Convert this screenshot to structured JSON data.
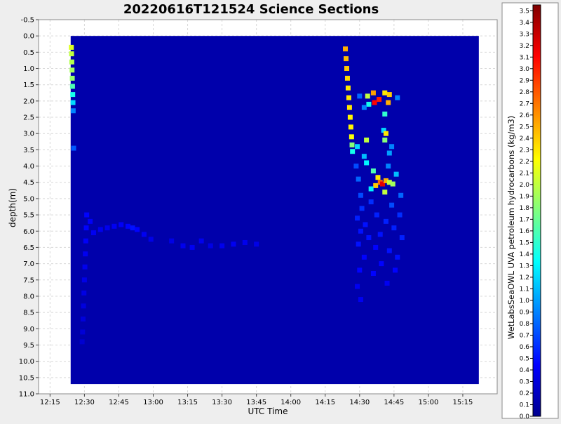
{
  "chart_data": {
    "type": "heatmap",
    "title": "20220616T121524 Science Sections",
    "xlabel": "UTC Time",
    "ylabel": "depth(m)",
    "colorbar_label": "WetLabsSeaOWL UVA petroleum hydrocarbons (kg/m3)",
    "x_ticks": [
      "12:15",
      "12:30",
      "12:45",
      "13:00",
      "13:15",
      "13:30",
      "13:45",
      "14:00",
      "14:15",
      "14:30",
      "14:45",
      "15:00",
      "15:15"
    ],
    "x_tick_minutes": [
      735,
      750,
      765,
      780,
      795,
      810,
      825,
      840,
      855,
      870,
      885,
      900,
      915
    ],
    "xlim_minutes": [
      730,
      930
    ],
    "y_ticks": [
      "-0.5",
      "0.0",
      "0.5",
      "1.0",
      "1.5",
      "2.0",
      "2.5",
      "3.0",
      "3.5",
      "4.0",
      "4.5",
      "5.0",
      "5.5",
      "6.0",
      "6.5",
      "7.0",
      "7.5",
      "8.0",
      "8.5",
      "9.0",
      "9.5",
      "10.0",
      "10.5",
      "11.0"
    ],
    "y_tick_values": [
      -0.5,
      0,
      0.5,
      1,
      1.5,
      2,
      2.5,
      3,
      3.5,
      4,
      4.5,
      5,
      5.5,
      6,
      6.5,
      7,
      7.5,
      8,
      8.5,
      9,
      9.5,
      10,
      10.5,
      11
    ],
    "ylim": [
      -0.5,
      11.0
    ],
    "y_inverted": true,
    "grid": true,
    "data_extent": {
      "x_minutes": [
        744,
        922
      ],
      "depth": [
        0.0,
        10.7
      ]
    },
    "colorbar_ticks": [
      "0.0",
      "0.1",
      "0.2",
      "0.3",
      "0.4",
      "0.5",
      "0.6",
      "0.7",
      "0.8",
      "0.9",
      "1.0",
      "1.1",
      "1.2",
      "1.3",
      "1.4",
      "1.5",
      "1.6",
      "1.7",
      "1.8",
      "1.9",
      "2.0",
      "2.1",
      "2.2",
      "2.3",
      "2.4",
      "2.5",
      "2.6",
      "2.7",
      "2.8",
      "2.9",
      "3.0",
      "3.1",
      "3.2",
      "3.3",
      "3.4",
      "3.5"
    ],
    "colorbar_range": [
      0,
      3.55
    ],
    "background_value": 0.15,
    "samples": [
      {
        "t": 744.3,
        "d": 0.35,
        "v": 2.1
      },
      {
        "t": 744.4,
        "d": 0.55,
        "v": 2.0
      },
      {
        "t": 744.5,
        "d": 0.8,
        "v": 1.95
      },
      {
        "t": 744.6,
        "d": 1.05,
        "v": 1.9
      },
      {
        "t": 744.7,
        "d": 1.3,
        "v": 1.85
      },
      {
        "t": 744.8,
        "d": 1.55,
        "v": 1.6
      },
      {
        "t": 744.9,
        "d": 1.8,
        "v": 1.4
      },
      {
        "t": 745.0,
        "d": 2.05,
        "v": 1.2
      },
      {
        "t": 745.1,
        "d": 2.3,
        "v": 0.9
      },
      {
        "t": 745.3,
        "d": 3.45,
        "v": 0.75
      },
      {
        "t": 751.0,
        "d": 5.5,
        "v": 0.45
      },
      {
        "t": 750.8,
        "d": 5.9,
        "v": 0.45
      },
      {
        "t": 750.6,
        "d": 6.3,
        "v": 0.42
      },
      {
        "t": 750.4,
        "d": 6.7,
        "v": 0.4
      },
      {
        "t": 750.2,
        "d": 7.1,
        "v": 0.38
      },
      {
        "t": 750.0,
        "d": 7.5,
        "v": 0.36
      },
      {
        "t": 749.8,
        "d": 7.9,
        "v": 0.35
      },
      {
        "t": 749.6,
        "d": 8.3,
        "v": 0.33
      },
      {
        "t": 749.4,
        "d": 8.7,
        "v": 0.32
      },
      {
        "t": 749.2,
        "d": 9.1,
        "v": 0.3
      },
      {
        "t": 749.0,
        "d": 9.4,
        "v": 0.28
      },
      {
        "t": 752.5,
        "d": 5.7,
        "v": 0.42
      },
      {
        "t": 754.0,
        "d": 6.05,
        "v": 0.4
      },
      {
        "t": 757.0,
        "d": 5.95,
        "v": 0.38
      },
      {
        "t": 760.0,
        "d": 5.9,
        "v": 0.38
      },
      {
        "t": 763.0,
        "d": 5.85,
        "v": 0.4
      },
      {
        "t": 766.0,
        "d": 5.8,
        "v": 0.42
      },
      {
        "t": 769.0,
        "d": 5.85,
        "v": 0.45
      },
      {
        "t": 771.0,
        "d": 5.9,
        "v": 0.5
      },
      {
        "t": 773.0,
        "d": 5.95,
        "v": 0.45
      },
      {
        "t": 776.0,
        "d": 6.1,
        "v": 0.4
      },
      {
        "t": 779.0,
        "d": 6.25,
        "v": 0.36
      },
      {
        "t": 788.0,
        "d": 6.3,
        "v": 0.35
      },
      {
        "t": 793.0,
        "d": 6.45,
        "v": 0.38
      },
      {
        "t": 797.0,
        "d": 6.5,
        "v": 0.4
      },
      {
        "t": 801.0,
        "d": 6.3,
        "v": 0.38
      },
      {
        "t": 805.0,
        "d": 6.45,
        "v": 0.35
      },
      {
        "t": 810.0,
        "d": 6.45,
        "v": 0.38
      },
      {
        "t": 815.0,
        "d": 6.4,
        "v": 0.4
      },
      {
        "t": 820.0,
        "d": 6.35,
        "v": 0.38
      },
      {
        "t": 825.0,
        "d": 6.4,
        "v": 0.36
      },
      {
        "t": 863.8,
        "d": 0.4,
        "v": 2.5
      },
      {
        "t": 864.1,
        "d": 0.7,
        "v": 2.45
      },
      {
        "t": 864.4,
        "d": 1.0,
        "v": 2.4
      },
      {
        "t": 864.7,
        "d": 1.3,
        "v": 2.35
      },
      {
        "t": 865.0,
        "d": 1.6,
        "v": 2.3
      },
      {
        "t": 865.3,
        "d": 1.9,
        "v": 2.3
      },
      {
        "t": 865.6,
        "d": 2.2,
        "v": 2.3
      },
      {
        "t": 865.9,
        "d": 2.5,
        "v": 2.25
      },
      {
        "t": 866.2,
        "d": 2.8,
        "v": 2.25
      },
      {
        "t": 866.5,
        "d": 3.1,
        "v": 2.2
      },
      {
        "t": 866.7,
        "d": 3.35,
        "v": 1.8
      },
      {
        "t": 866.9,
        "d": 3.55,
        "v": 1.4
      },
      {
        "t": 870.0,
        "d": 1.85,
        "v": 0.8
      },
      {
        "t": 873.5,
        "d": 1.85,
        "v": 2.0
      },
      {
        "t": 876.0,
        "d": 1.75,
        "v": 2.55
      },
      {
        "t": 878.5,
        "d": 1.95,
        "v": 3.0
      },
      {
        "t": 881.0,
        "d": 1.75,
        "v": 2.3
      },
      {
        "t": 883.0,
        "d": 1.8,
        "v": 2.4
      },
      {
        "t": 876.5,
        "d": 2.05,
        "v": 3.1
      },
      {
        "t": 874.0,
        "d": 2.1,
        "v": 1.4
      },
      {
        "t": 872.0,
        "d": 2.2,
        "v": 0.9
      },
      {
        "t": 882.5,
        "d": 2.05,
        "v": 2.5
      },
      {
        "t": 886.5,
        "d": 1.9,
        "v": 0.9
      },
      {
        "t": 881.0,
        "d": 2.4,
        "v": 1.5
      },
      {
        "t": 880.5,
        "d": 2.9,
        "v": 1.2
      },
      {
        "t": 881.5,
        "d": 3.0,
        "v": 2.3
      },
      {
        "t": 881.0,
        "d": 3.2,
        "v": 1.8
      },
      {
        "t": 873.0,
        "d": 3.2,
        "v": 2.0
      },
      {
        "t": 884.0,
        "d": 3.4,
        "v": 0.9
      },
      {
        "t": 883.0,
        "d": 3.6,
        "v": 1.0
      },
      {
        "t": 872.0,
        "d": 3.7,
        "v": 1.1
      },
      {
        "t": 873.0,
        "d": 3.9,
        "v": 1.3
      },
      {
        "t": 869.0,
        "d": 3.4,
        "v": 1.2
      },
      {
        "t": 876.0,
        "d": 4.15,
        "v": 1.6
      },
      {
        "t": 878.0,
        "d": 4.35,
        "v": 2.3
      },
      {
        "t": 879.0,
        "d": 4.5,
        "v": 2.75
      },
      {
        "t": 880.0,
        "d": 4.55,
        "v": 3.2
      },
      {
        "t": 881.5,
        "d": 4.45,
        "v": 2.5
      },
      {
        "t": 883.0,
        "d": 4.5,
        "v": 2.0
      },
      {
        "t": 884.5,
        "d": 4.55,
        "v": 1.9
      },
      {
        "t": 877.0,
        "d": 4.6,
        "v": 2.4
      },
      {
        "t": 881.0,
        "d": 4.8,
        "v": 2.0
      },
      {
        "t": 875.0,
        "d": 4.7,
        "v": 1.3
      },
      {
        "t": 886.0,
        "d": 4.25,
        "v": 1.1
      },
      {
        "t": 882.5,
        "d": 4.0,
        "v": 0.9
      },
      {
        "t": 868.5,
        "d": 4.0,
        "v": 0.7
      },
      {
        "t": 869.5,
        "d": 4.4,
        "v": 0.8
      },
      {
        "t": 870.5,
        "d": 4.9,
        "v": 0.7
      },
      {
        "t": 871.0,
        "d": 5.3,
        "v": 0.6
      },
      {
        "t": 869.0,
        "d": 5.6,
        "v": 0.55
      },
      {
        "t": 870.5,
        "d": 6.0,
        "v": 0.5
      },
      {
        "t": 869.5,
        "d": 6.4,
        "v": 0.5
      },
      {
        "t": 872.0,
        "d": 6.8,
        "v": 0.45
      },
      {
        "t": 870.0,
        "d": 7.2,
        "v": 0.45
      },
      {
        "t": 869.0,
        "d": 7.7,
        "v": 0.4
      },
      {
        "t": 870.5,
        "d": 8.1,
        "v": 0.4
      },
      {
        "t": 872.5,
        "d": 5.8,
        "v": 0.5
      },
      {
        "t": 875.0,
        "d": 5.1,
        "v": 0.6
      },
      {
        "t": 877.5,
        "d": 5.5,
        "v": 0.55
      },
      {
        "t": 879.0,
        "d": 6.1,
        "v": 0.5
      },
      {
        "t": 877.0,
        "d": 6.5,
        "v": 0.45
      },
      {
        "t": 879.5,
        "d": 7.0,
        "v": 0.45
      },
      {
        "t": 881.5,
        "d": 5.7,
        "v": 0.55
      },
      {
        "t": 884.0,
        "d": 5.2,
        "v": 0.7
      },
      {
        "t": 885.0,
        "d": 5.9,
        "v": 0.55
      },
      {
        "t": 883.0,
        "d": 6.6,
        "v": 0.5
      },
      {
        "t": 885.5,
        "d": 7.2,
        "v": 0.45
      },
      {
        "t": 887.5,
        "d": 5.5,
        "v": 0.6
      },
      {
        "t": 888.5,
        "d": 6.2,
        "v": 0.55
      },
      {
        "t": 886.5,
        "d": 6.8,
        "v": 0.5
      },
      {
        "t": 874.0,
        "d": 6.2,
        "v": 0.5
      },
      {
        "t": 876.0,
        "d": 7.3,
        "v": 0.45
      },
      {
        "t": 882.0,
        "d": 7.6,
        "v": 0.4
      },
      {
        "t": 888.0,
        "d": 4.9,
        "v": 0.8
      }
    ]
  }
}
